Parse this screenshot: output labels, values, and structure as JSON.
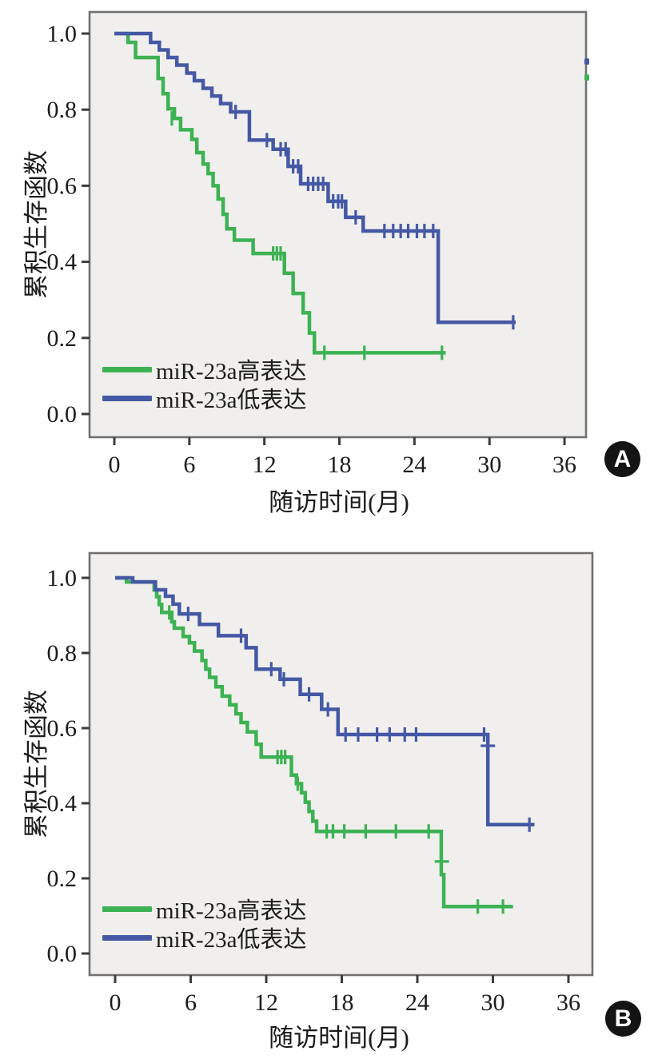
{
  "page": {
    "background": "#ffffff",
    "text_color": "#1c1c1c"
  },
  "chart_data": [
    {
      "id": "A",
      "panel_label": "A",
      "type": "line",
      "subtype": "kaplan-meier-step",
      "title": "",
      "xlabel": "随访时间(月)",
      "ylabel": "累积生存函数",
      "xticks": [
        0,
        6,
        12,
        18,
        24,
        30,
        36
      ],
      "ytick_values": [
        0.0,
        0.2,
        0.4,
        0.6,
        0.8,
        1.0
      ],
      "ytick_labels": [
        "0.0",
        "0.2",
        "0.4",
        "0.6",
        "0.8",
        "1.0"
      ],
      "xlim": [
        -2,
        37.7
      ],
      "ylim": [
        -0.06,
        1.06
      ],
      "grid": false,
      "legend_position": "lower-left",
      "plot_bg": "#f0efed",
      "border_color": "#707070",
      "series": [
        {
          "name": "miR-23a高表达",
          "color": "#3cb252",
          "steps": [
            [
              0,
              1.0
            ],
            [
              1.1,
              0.977
            ],
            [
              1.7,
              0.937
            ],
            [
              3.5,
              0.882
            ],
            [
              3.9,
              0.842
            ],
            [
              4.3,
              0.802
            ],
            [
              4.8,
              0.777
            ],
            [
              5.3,
              0.747
            ],
            [
              6.2,
              0.722
            ],
            [
              6.6,
              0.687
            ],
            [
              7.1,
              0.657
            ],
            [
              7.5,
              0.632
            ],
            [
              7.9,
              0.6
            ],
            [
              8.3,
              0.565
            ],
            [
              8.7,
              0.525
            ],
            [
              9.0,
              0.487
            ],
            [
              9.6,
              0.457
            ],
            [
              11.1,
              0.422
            ],
            [
              13.6,
              0.37
            ],
            [
              14.3,
              0.317
            ],
            [
              15.1,
              0.266
            ],
            [
              15.6,
              0.213
            ],
            [
              16.0,
              0.161
            ]
          ],
          "end_t": 26.5,
          "censors": [
            [
              4.6,
              0.777
            ],
            [
              12.7,
              0.422
            ],
            [
              13.0,
              0.422
            ],
            [
              13.3,
              0.422
            ],
            [
              16.8,
              0.161
            ],
            [
              20.0,
              0.161
            ],
            [
              26.2,
              0.161
            ]
          ]
        },
        {
          "name": "miR-23a低表达",
          "color": "#4558a5",
          "steps": [
            [
              0,
              1.0
            ],
            [
              2.9,
              0.977
            ],
            [
              3.6,
              0.957
            ],
            [
              4.3,
              0.937
            ],
            [
              5.0,
              0.917
            ],
            [
              5.8,
              0.896
            ],
            [
              6.4,
              0.876
            ],
            [
              7.1,
              0.856
            ],
            [
              7.8,
              0.836
            ],
            [
              8.5,
              0.816
            ],
            [
              9.3,
              0.794
            ],
            [
              10.8,
              0.72
            ],
            [
              12.7,
              0.696
            ],
            [
              13.9,
              0.651
            ],
            [
              14.9,
              0.605
            ],
            [
              17.1,
              0.559
            ],
            [
              18.5,
              0.517
            ],
            [
              19.9,
              0.481
            ],
            [
              25.9,
              0.241
            ]
          ],
          "end_t": 32.1,
          "censors": [
            [
              9.7,
              0.794
            ],
            [
              12.2,
              0.72
            ],
            [
              13.3,
              0.696
            ],
            [
              13.7,
              0.696
            ],
            [
              14.3,
              0.651
            ],
            [
              14.7,
              0.651
            ],
            [
              15.5,
              0.605
            ],
            [
              15.9,
              0.605
            ],
            [
              16.3,
              0.605
            ],
            [
              16.7,
              0.605
            ],
            [
              17.5,
              0.559
            ],
            [
              17.9,
              0.559
            ],
            [
              18.2,
              0.559
            ],
            [
              19.3,
              0.517
            ],
            [
              21.6,
              0.481
            ],
            [
              22.3,
              0.481
            ],
            [
              22.9,
              0.481
            ],
            [
              23.5,
              0.481
            ],
            [
              24.2,
              0.481
            ],
            [
              24.8,
              0.481
            ],
            [
              25.5,
              0.481
            ],
            [
              31.9,
              0.241
            ]
          ]
        }
      ]
    },
    {
      "id": "B",
      "panel_label": "B",
      "type": "line",
      "subtype": "kaplan-meier-step",
      "title": "",
      "xlabel": "随访时间(月)",
      "ylabel": "累积生存函数",
      "xticks": [
        0,
        6,
        12,
        18,
        24,
        30,
        36
      ],
      "ytick_values": [
        0.0,
        0.2,
        0.4,
        0.6,
        0.8,
        1.0
      ],
      "ytick_labels": [
        "0.0",
        "0.2",
        "0.4",
        "0.6",
        "0.8",
        "1.0"
      ],
      "xlim": [
        -2,
        37.9
      ],
      "ylim": [
        -0.06,
        1.07
      ],
      "grid": false,
      "legend_position": "lower-left",
      "plot_bg": "#f0efed",
      "border_color": "#707070",
      "series": [
        {
          "name": "miR-23a高表达",
          "color": "#3cb252",
          "steps": [
            [
              0,
              1.0
            ],
            [
              0.9,
              0.989
            ],
            [
              3.1,
              0.968
            ],
            [
              3.3,
              0.95
            ],
            [
              3.5,
              0.929
            ],
            [
              3.7,
              0.908
            ],
            [
              4.5,
              0.883
            ],
            [
              4.7,
              0.866
            ],
            [
              5.4,
              0.844
            ],
            [
              5.9,
              0.827
            ],
            [
              6.3,
              0.805
            ],
            [
              6.9,
              0.78
            ],
            [
              7.2,
              0.757
            ],
            [
              7.5,
              0.735
            ],
            [
              8.0,
              0.71
            ],
            [
              8.5,
              0.685
            ],
            [
              9.1,
              0.662
            ],
            [
              9.6,
              0.638
            ],
            [
              10.0,
              0.615
            ],
            [
              10.5,
              0.59
            ],
            [
              11.2,
              0.557
            ],
            [
              11.6,
              0.523
            ],
            [
              14.0,
              0.475
            ],
            [
              14.4,
              0.452
            ],
            [
              14.8,
              0.428
            ],
            [
              15.1,
              0.403
            ],
            [
              15.4,
              0.378
            ],
            [
              15.7,
              0.352
            ],
            [
              16.0,
              0.325
            ],
            [
              25.9,
              0.21
            ],
            [
              26.1,
              0.125
            ]
          ],
          "end_t": 31.6,
          "censors": [
            [
              4.3,
              0.908
            ],
            [
              12.9,
              0.523
            ],
            [
              13.2,
              0.523
            ],
            [
              13.5,
              0.523
            ],
            [
              14.5,
              0.452
            ],
            [
              16.8,
              0.325
            ],
            [
              17.3,
              0.325
            ],
            [
              18.2,
              0.325
            ],
            [
              19.9,
              0.325
            ],
            [
              22.3,
              0.325
            ],
            [
              24.9,
              0.325
            ],
            [
              25.95,
              0.245,
              "h"
            ],
            [
              28.8,
              0.125
            ],
            [
              30.8,
              0.125
            ]
          ]
        },
        {
          "name": "miR-23a低表达",
          "color": "#4558a5",
          "steps": [
            [
              0,
              1.0
            ],
            [
              1.4,
              0.989
            ],
            [
              3.2,
              0.968
            ],
            [
              4.0,
              0.951
            ],
            [
              4.6,
              0.93
            ],
            [
              5.1,
              0.904
            ],
            [
              6.7,
              0.876
            ],
            [
              8.2,
              0.846
            ],
            [
              10.4,
              0.814
            ],
            [
              11.2,
              0.757
            ],
            [
              13.1,
              0.73
            ],
            [
              14.7,
              0.69
            ],
            [
              16.4,
              0.65
            ],
            [
              17.7,
              0.583
            ],
            [
              29.6,
              0.343
            ]
          ],
          "end_t": 33.3,
          "censors": [
            [
              5.8,
              0.904
            ],
            [
              10.0,
              0.846
            ],
            [
              12.4,
              0.757
            ],
            [
              13.4,
              0.73
            ],
            [
              15.4,
              0.69
            ],
            [
              16.9,
              0.65
            ],
            [
              18.3,
              0.583
            ],
            [
              19.3,
              0.583
            ],
            [
              20.8,
              0.583
            ],
            [
              21.8,
              0.583
            ],
            [
              23.0,
              0.583
            ],
            [
              23.9,
              0.583
            ],
            [
              29.3,
              0.583
            ],
            [
              29.6,
              0.553,
              "h"
            ],
            [
              32.9,
              0.343
            ]
          ]
        }
      ]
    }
  ]
}
